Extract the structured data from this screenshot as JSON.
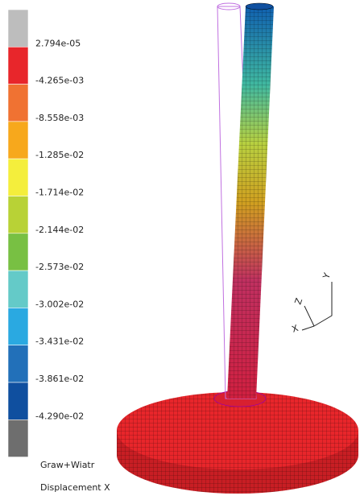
{
  "legend": {
    "colors": [
      "#bdbdbd",
      "#e8262b",
      "#f07232",
      "#f7a81c",
      "#f4ee3c",
      "#b8d236",
      "#78c043",
      "#64cac8",
      "#2aa9e1",
      "#2270b9",
      "#0f4f9f",
      "#6e6e6e"
    ],
    "labels": [
      "2.794e-05",
      "-4.265e-03",
      "-8.558e-03",
      "-1.285e-02",
      "-1.714e-02",
      "-2.144e-02",
      "-2.573e-02",
      "-3.002e-02",
      "-3.431e-02",
      "-3.861e-02",
      "-4.290e-02"
    ]
  },
  "captions": {
    "load_case": "Graw+Wiatr",
    "result": "Displacement X"
  },
  "triad": {
    "y": "Y",
    "z": "Z",
    "x": "X"
  }
}
